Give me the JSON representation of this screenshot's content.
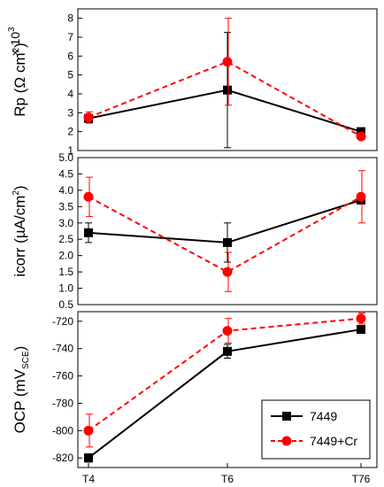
{
  "chart_data": [
    {
      "type": "line",
      "categories": [
        "T4",
        "T6",
        "T76"
      ],
      "ylabel_main": "Rp (Ω cm",
      "ylabel_sup": "2",
      "ylabel_tail": ")",
      "multiplier_text": "× 10",
      "multiplier_exp": "3",
      "ylim": [
        1,
        8.5
      ],
      "yticks": [
        1,
        2,
        3,
        4,
        5,
        6,
        7,
        8
      ],
      "series": [
        {
          "name": "7449",
          "values": [
            2.7,
            4.2,
            2.0
          ],
          "errors": [
            0.2,
            3.05,
            0.15
          ],
          "color": "#000000",
          "dash": false,
          "marker": "square"
        },
        {
          "name": "7449+Cr",
          "values": [
            2.75,
            5.7,
            1.75
          ],
          "errors": [
            0.3,
            2.3,
            0.15
          ],
          "color": "#ff0000",
          "dash": true,
          "marker": "circle"
        }
      ]
    },
    {
      "type": "line",
      "categories": [
        "T4",
        "T6",
        "T76"
      ],
      "ylabel_main": "icorr (µA/cm",
      "ylabel_sup": "2",
      "ylabel_tail": ")",
      "ylim": [
        0.5,
        5.0
      ],
      "yticks": [
        0.5,
        1.0,
        1.5,
        2.0,
        2.5,
        3.0,
        3.5,
        4.0,
        4.5,
        5.0
      ],
      "series": [
        {
          "name": "7449",
          "values": [
            2.7,
            2.4,
            3.7
          ],
          "errors": [
            0.3,
            0.6,
            0.1
          ],
          "color": "#000000",
          "dash": false,
          "marker": "square"
        },
        {
          "name": "7449+Cr",
          "values": [
            3.8,
            1.5,
            3.8
          ],
          "errors": [
            0.6,
            0.6,
            0.8
          ],
          "color": "#ff0000",
          "dash": true,
          "marker": "circle"
        }
      ]
    },
    {
      "type": "line",
      "categories": [
        "T4",
        "T6",
        "T76"
      ],
      "ylabel_main": "OCP (mV",
      "ylabel_sub": "SCE",
      "ylabel_tail": ")",
      "ylim": [
        -827,
        -713
      ],
      "yticks": [
        -820,
        -800,
        -780,
        -760,
        -740,
        -720
      ],
      "legend_position": "bottom-right",
      "series": [
        {
          "name": "7449",
          "values": [
            -820,
            -742,
            -726
          ],
          "errors": [
            3,
            5,
            2
          ],
          "color": "#000000",
          "dash": false,
          "marker": "square"
        },
        {
          "name": "7449+Cr",
          "values": [
            -800,
            -727,
            -718
          ],
          "errors": [
            12,
            9,
            4
          ],
          "color": "#ff0000",
          "dash": true,
          "marker": "circle"
        }
      ]
    }
  ]
}
